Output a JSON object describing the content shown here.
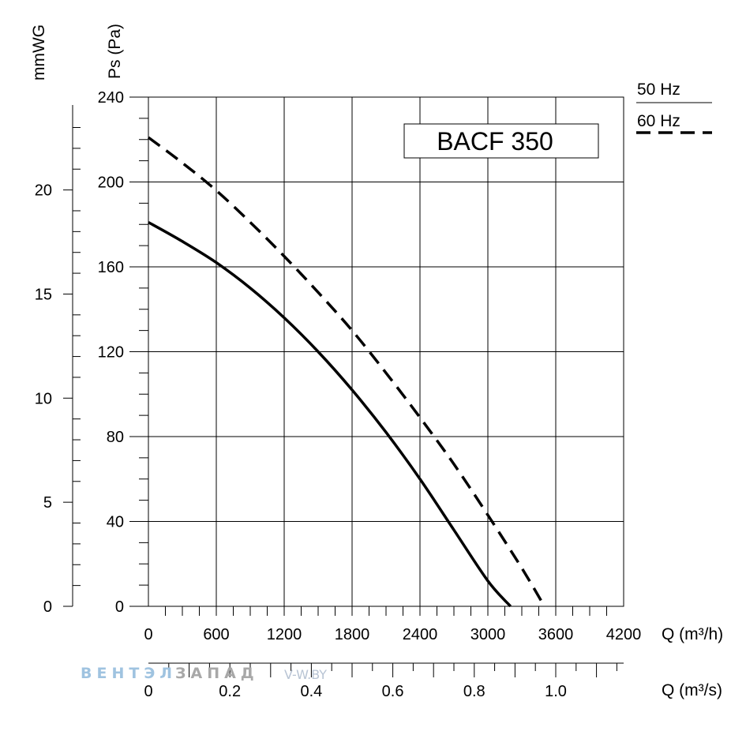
{
  "chart_data": {
    "type": "line",
    "model_label": "BACF 350",
    "x": {
      "label": "Q (m³/h)",
      "range": [
        0,
        4200
      ],
      "ticks": [
        0,
        600,
        1200,
        1800,
        2400,
        3000,
        3600,
        4200
      ],
      "tick_labels": [
        "0",
        "600",
        "1200",
        "1800",
        "2400",
        "3000",
        "3600",
        "4200"
      ]
    },
    "x2": {
      "label": "Q (m³/s)",
      "range": [
        0,
        1.1667
      ],
      "ticks": [
        0,
        0.2,
        0.4,
        0.6,
        0.8,
        1.0
      ],
      "tick_labels": [
        "0",
        "0.2",
        "0.4",
        "0.6",
        "0.8",
        "1.0"
      ]
    },
    "y": {
      "label": "Ps (Pa)",
      "range": [
        0,
        240
      ],
      "ticks": [
        0,
        40,
        80,
        120,
        160,
        200,
        240
      ],
      "tick_labels": [
        "0",
        "40",
        "80",
        "120",
        "160",
        "200",
        "240"
      ]
    },
    "y2": {
      "label": "mmWG",
      "range": [
        0,
        24.46
      ],
      "ticks": [
        0,
        5,
        10,
        15,
        20
      ],
      "tick_labels": [
        "0",
        "5",
        "10",
        "15",
        "20"
      ]
    },
    "grid": true,
    "legend_position": "top-right",
    "series": [
      {
        "name": "50 Hz",
        "style": "solid",
        "color": "#000000",
        "points": [
          [
            0,
            181
          ],
          [
            300,
            172
          ],
          [
            600,
            162
          ],
          [
            900,
            150
          ],
          [
            1200,
            136
          ],
          [
            1500,
            120
          ],
          [
            1800,
            102
          ],
          [
            2100,
            82
          ],
          [
            2400,
            60
          ],
          [
            2700,
            36
          ],
          [
            3000,
            12
          ],
          [
            3200,
            0
          ]
        ]
      },
      {
        "name": "60 Hz",
        "style": "dashed",
        "color": "#000000",
        "points": [
          [
            0,
            221
          ],
          [
            300,
            209
          ],
          [
            600,
            196
          ],
          [
            900,
            181
          ],
          [
            1200,
            165
          ],
          [
            1500,
            148
          ],
          [
            1800,
            130
          ],
          [
            2100,
            110
          ],
          [
            2400,
            89
          ],
          [
            2700,
            67
          ],
          [
            3000,
            43
          ],
          [
            3300,
            18
          ],
          [
            3500,
            0
          ]
        ]
      }
    ]
  },
  "watermark": {
    "part1": "ВЕНТЭЛ",
    "part2": "ЗАПАД",
    "part3": "V-W.BY"
  }
}
